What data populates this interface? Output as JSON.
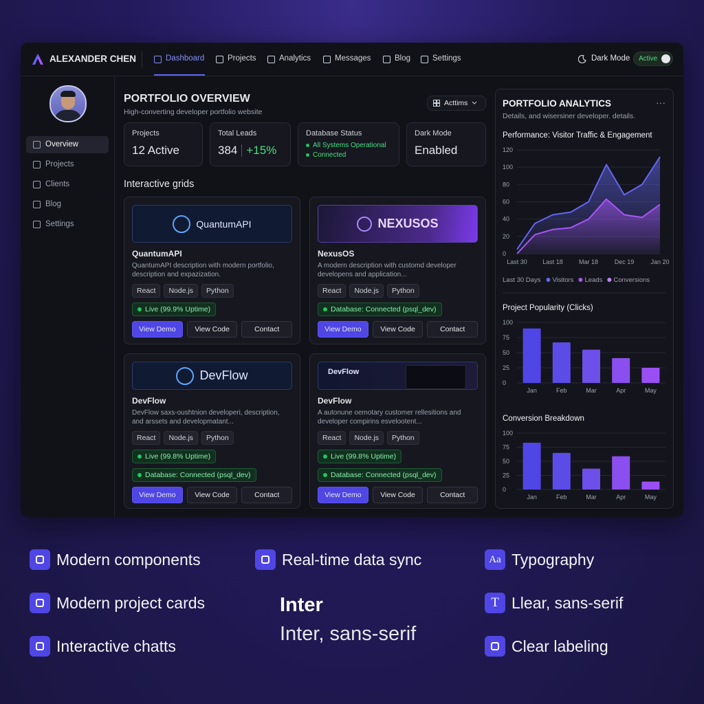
{
  "nav": {
    "brand": "ALEXANDER CHEN",
    "tabs": [
      "Dashboard",
      "Projects",
      "Analytics",
      "Messages",
      "Blog",
      "Settings"
    ],
    "dark_mode_label": "Dark Mode",
    "dark_mode_state": "Active"
  },
  "sidebar": {
    "items": [
      "Overview",
      "Projects",
      "Clients",
      "Blog",
      "Settings"
    ]
  },
  "overview": {
    "title": "PORTFOLIO OVERVIEW",
    "subtitle": "High-converting developer portfolio website",
    "actions": "Acttims",
    "stats": [
      {
        "label": "Projects",
        "value": "12 Active"
      },
      {
        "label": "Total Leads",
        "value": "384",
        "change": "+15%"
      },
      {
        "label": "Database Status",
        "lines": [
          "All Systems Operational",
          "Connected"
        ]
      },
      {
        "label": "Dark Mode",
        "value": "Enabled"
      }
    ]
  },
  "grid": {
    "title": "Interactive grids",
    "cards": [
      {
        "banner": "QuantumAPI",
        "name": "QuantumAPI",
        "description": "QuantumAPI description with modern portfolio, description and expazization.",
        "tags": [
          "React",
          "Node.js",
          "Python"
        ],
        "statuses": [
          "Live (99.9% Uptime)"
        ],
        "buttons": [
          "View Demo",
          "View Code",
          "Contact"
        ]
      },
      {
        "banner": "NEXUSOS",
        "name": "NexusOS",
        "description": "A modern description with customd developer developens and application...",
        "tags": [
          "React",
          "Node.js",
          "Python"
        ],
        "statuses": [
          "Database: Connected (psql_dev)"
        ],
        "buttons": [
          "View Demo",
          "View Code",
          "Contact"
        ]
      },
      {
        "banner": "DevFlow",
        "name": "DevFlow",
        "description": "DevFlow saxs-oushtnion developeri, description, and arssets and developmatant...",
        "tags": [
          "React",
          "Node.js",
          "Python"
        ],
        "statuses": [
          "Live (99.8% Uptime)",
          "Database: Connected (psql_dev)"
        ],
        "buttons": [
          "View Demo",
          "View Code",
          "Contact"
        ]
      },
      {
        "banner": "DevFlow",
        "name": "DevFlow",
        "description": "A autonune oemotary customer rellesitions and developer compirins esvelootent...",
        "tags": [
          "React",
          "Node.js",
          "Python"
        ],
        "statuses": [
          "Live (99.8% Uptime)",
          "Database: Connected (psql_dev)"
        ],
        "buttons": [
          "View Demo",
          "View Code",
          "Contact"
        ]
      }
    ]
  },
  "analytics": {
    "title": "PORTFOLIO ANALYTICS",
    "subtitle": "Details, and wisersiner developer. details.",
    "charts": [
      {
        "type": "line",
        "title": "Performance: Visitor Traffic & Engagement",
        "categories": [
          "Last 30",
          null,
          "Last 18",
          null,
          "Mar 18",
          null,
          "Dec 19",
          null,
          "Jan 20"
        ],
        "ylim": [
          0,
          120
        ],
        "yticks": [
          0,
          20,
          40,
          60,
          80,
          100,
          120
        ],
        "legend_title": "Last 30 Days",
        "series": [
          {
            "name": "Visitors",
            "color": "#6366f1",
            "values": [
              5,
              35,
              45,
              48,
              60,
              103,
              68,
              80,
              112
            ]
          },
          {
            "name": "Leads",
            "color": "#a855f7",
            "values": [
              0,
              22,
              28,
              30,
              40,
              63,
              45,
              42,
              57
            ]
          },
          {
            "name": "Conversions",
            "color": "#c084fc",
            "values": [
              null,
              null,
              null,
              null,
              null,
              null,
              null,
              null,
              null
            ]
          }
        ]
      },
      {
        "type": "bar",
        "title": "Project Popularity (Clicks)",
        "categories": [
          "Jan",
          "Feb",
          "Mar",
          "Apr",
          "May"
        ],
        "values": [
          90,
          67,
          55,
          41,
          25
        ],
        "colors": [
          "#4f46e5",
          "#5b4ce8",
          "#6d4fea",
          "#8b4ff0",
          "#9a4ff5"
        ],
        "ylim": [
          0,
          100
        ],
        "yticks": [
          0,
          25,
          50,
          75,
          100
        ]
      },
      {
        "type": "bar",
        "title": "Conversion Breakdown",
        "categories": [
          "Jan",
          "Feb",
          "Mar",
          "Apr",
          "May"
        ],
        "values": [
          83,
          65,
          37,
          59,
          14
        ],
        "colors": [
          "#4f46e5",
          "#5b4ce8",
          "#6d4fea",
          "#8b4ff0",
          "#9a4ff5"
        ],
        "ylim": [
          0,
          100
        ],
        "yticks": [
          0,
          25,
          50,
          75,
          100
        ]
      }
    ]
  },
  "features": {
    "items": [
      {
        "text": "Modern components"
      },
      {
        "text": "Real-time data sync"
      },
      {
        "text": "Typography",
        "icon_text": "Aa"
      },
      {
        "text": "Modern project cards"
      },
      {
        "text": "Llear, sans-serif",
        "icon_text": "T"
      },
      {
        "text": "Interactive chatts"
      },
      {
        "text": "Clear labeling"
      }
    ],
    "font_name": "Inter",
    "font_family": "Inter, sans-serif"
  }
}
